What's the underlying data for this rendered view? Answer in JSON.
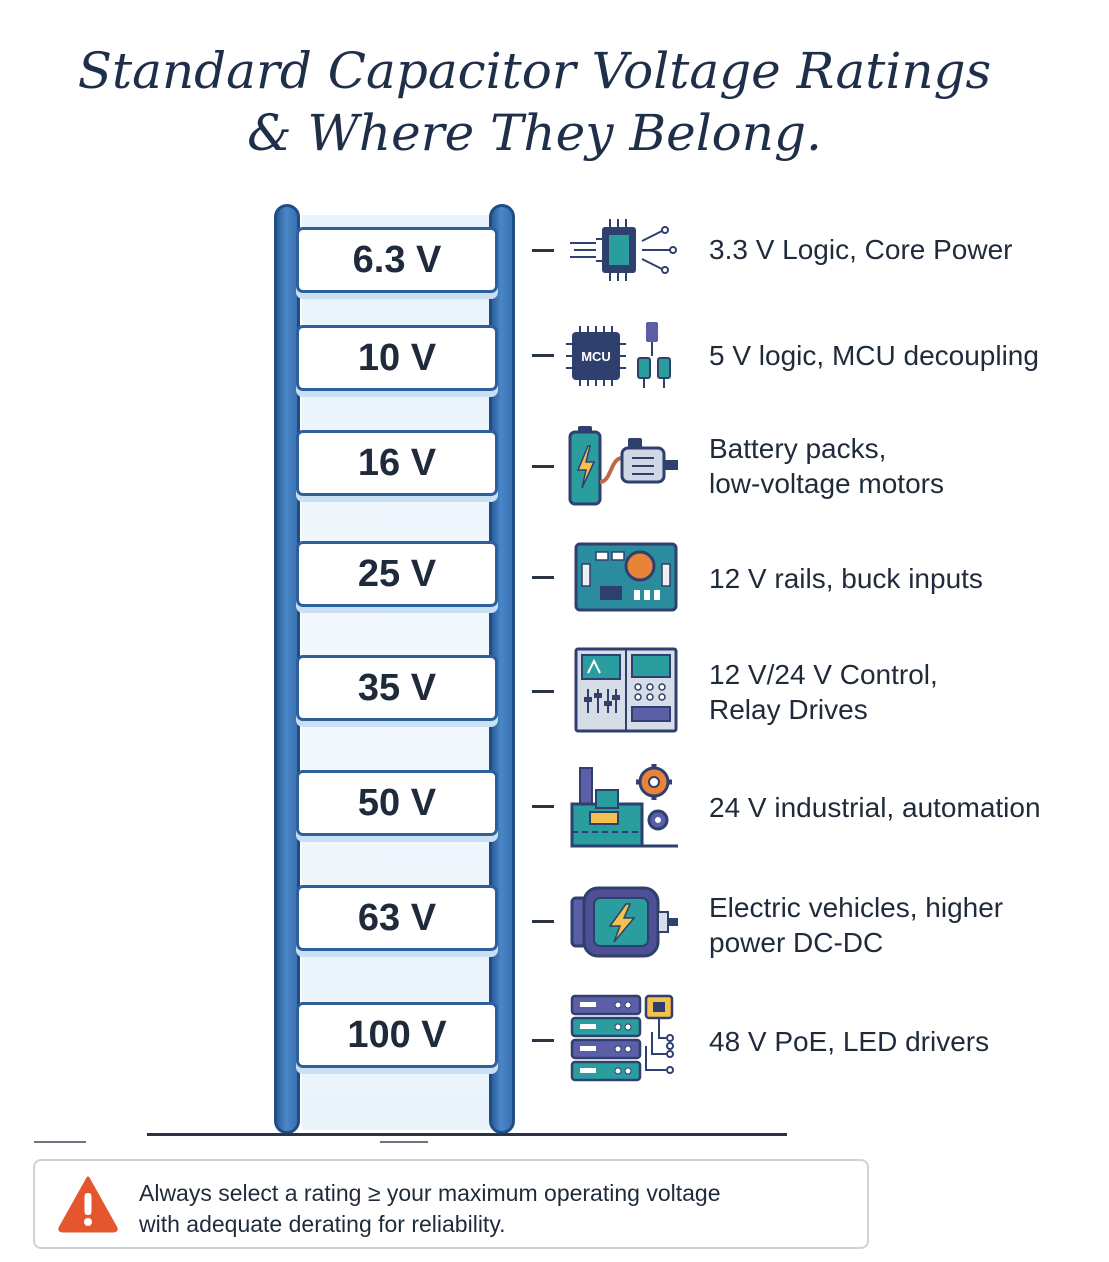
{
  "title": {
    "line1": "Standard Capacitor Voltage Ratings",
    "line2": "& Where They Belong."
  },
  "ratings": [
    {
      "voltage": "6.3 V",
      "icon": "microchip-icon",
      "lines": [
        "3.3 V Logic, Core Power"
      ]
    },
    {
      "voltage": "10 V",
      "icon": "mcu-board-icon",
      "lines": [
        "5 V logic, MCU decoupling"
      ]
    },
    {
      "voltage": "16 V",
      "icon": "battery-motor-icon",
      "lines": [
        "Battery packs,",
        "low-voltage motors"
      ]
    },
    {
      "voltage": "25 V",
      "icon": "circuit-board-icon",
      "lines": [
        "12 V rails, buck inputs"
      ]
    },
    {
      "voltage": "35 V",
      "icon": "control-panel-icon",
      "lines": [
        "12 V/24 V Control,",
        "Relay Drives"
      ]
    },
    {
      "voltage": "50 V",
      "icon": "factory-gears-icon",
      "lines": [
        "24 V industrial, automation"
      ]
    },
    {
      "voltage": "63 V",
      "icon": "ev-motor-icon",
      "lines": [
        "Electric vehicles, higher",
        "power DC-DC"
      ]
    },
    {
      "voltage": "100 V",
      "icon": "server-rack-icon",
      "lines": [
        "48 V PoE, LED drivers"
      ]
    }
  ],
  "notice": {
    "icon": "warning-icon",
    "line1": "Always select a rating ≥ your maximum operating voltage",
    "line2": "with adequate derating for reliability."
  },
  "colors": {
    "rail": "#3a71b0",
    "rail_border": "#1f4d86",
    "icon_teal": "#2a9d9f",
    "icon_navy": "#2f3f6e",
    "icon_orange": "#e8833a",
    "warning": "#e4572e"
  }
}
